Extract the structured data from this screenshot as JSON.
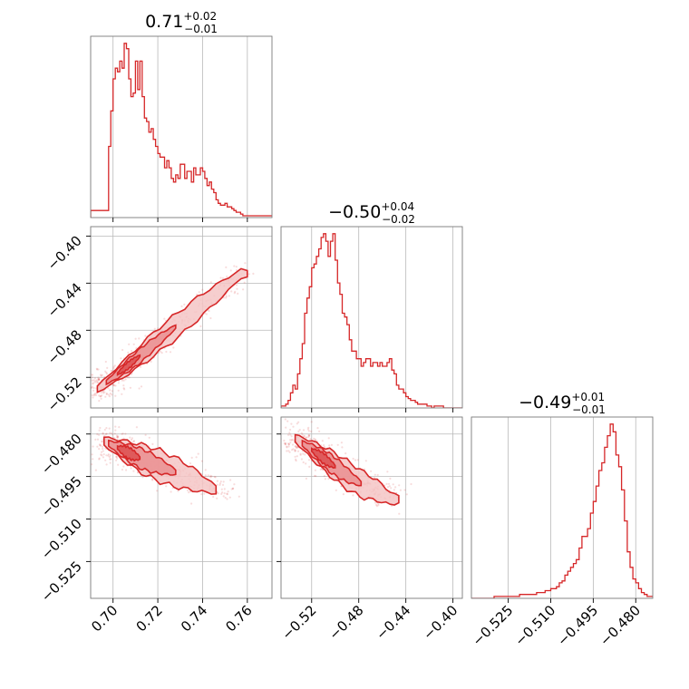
{
  "colors": {
    "series": "#d62728",
    "fill_light": "#f4c6c6",
    "fill_mid": "#ea8f90",
    "fill_dark": "#dd4f50",
    "grid": "#b9b9b9",
    "frame": "#7a7a7a"
  },
  "chart_data": {
    "type": "corner",
    "grid": true,
    "parameters": [
      {
        "title_value": "0.71",
        "title_plus": "+0.02",
        "title_minus": "−0.01",
        "range": [
          0.69,
          0.771
        ],
        "ticks": [
          0.7,
          0.72,
          0.74,
          0.76
        ],
        "tick_labels": [
          "0.70",
          "0.72",
          "0.74",
          "0.76"
        ],
        "hist_x": [
          0.69,
          0.696,
          0.698,
          0.699,
          0.7,
          0.701,
          0.702,
          0.703,
          0.704,
          0.705,
          0.706,
          0.707,
          0.708,
          0.709,
          0.71,
          0.711,
          0.712,
          0.713,
          0.714,
          0.715,
          0.716,
          0.717,
          0.718,
          0.719,
          0.72,
          0.721,
          0.722,
          0.723,
          0.724,
          0.725,
          0.726,
          0.727,
          0.728,
          0.729,
          0.73,
          0.731,
          0.732,
          0.733,
          0.734,
          0.735,
          0.736,
          0.737,
          0.738,
          0.739,
          0.74,
          0.741,
          0.742,
          0.743,
          0.744,
          0.745,
          0.746,
          0.747,
          0.748,
          0.749,
          0.75,
          0.751,
          0.752,
          0.753,
          0.754,
          0.755,
          0.756,
          0.757,
          0.758,
          0.76,
          0.771
        ],
        "hist_y": [
          4,
          4,
          40,
          60,
          78,
          84,
          82,
          88,
          84,
          98,
          95,
          78,
          68,
          70,
          88,
          72,
          88,
          68,
          56,
          54,
          48,
          50,
          44,
          40,
          36,
          34,
          34,
          28,
          32,
          28,
          22,
          20,
          24,
          22,
          30,
          30,
          22,
          26,
          26,
          20,
          28,
          24,
          24,
          28,
          26,
          22,
          18,
          20,
          16,
          14,
          10,
          8,
          7,
          7,
          8,
          6,
          6,
          5,
          4,
          3,
          3,
          2,
          1,
          1
        ]
      },
      {
        "title_value": "−0.50",
        "title_plus": "+0.04",
        "title_minus": "−0.02",
        "range": [
          -0.546,
          -0.392
        ],
        "ticks": [
          -0.52,
          -0.48,
          -0.44,
          -0.4
        ],
        "tick_labels": [
          "−0.52",
          "−0.48",
          "−0.44",
          "−0.40"
        ],
        "hist_x": [
          -0.546,
          -0.542,
          -0.54,
          -0.538,
          -0.536,
          -0.534,
          -0.532,
          -0.53,
          -0.528,
          -0.526,
          -0.524,
          -0.522,
          -0.52,
          -0.518,
          -0.516,
          -0.514,
          -0.512,
          -0.51,
          -0.508,
          -0.506,
          -0.504,
          -0.502,
          -0.5,
          -0.498,
          -0.496,
          -0.494,
          -0.492,
          -0.49,
          -0.488,
          -0.486,
          -0.484,
          -0.482,
          -0.48,
          -0.478,
          -0.476,
          -0.474,
          -0.472,
          -0.47,
          -0.468,
          -0.466,
          -0.464,
          -0.462,
          -0.46,
          -0.458,
          -0.456,
          -0.454,
          -0.452,
          -0.45,
          -0.448,
          -0.446,
          -0.444,
          -0.442,
          -0.44,
          -0.438,
          -0.436,
          -0.434,
          -0.432,
          -0.43,
          -0.428,
          -0.426,
          -0.424,
          -0.422,
          -0.42,
          -0.418,
          -0.416,
          -0.412,
          -0.408,
          -0.4,
          -0.392
        ],
        "hist_y": [
          1,
          2,
          4,
          8,
          12,
          10,
          18,
          26,
          34,
          50,
          58,
          64,
          74,
          76,
          80,
          84,
          90,
          92,
          88,
          80,
          88,
          92,
          78,
          66,
          60,
          50,
          48,
          44,
          36,
          30,
          30,
          26,
          26,
          22,
          24,
          26,
          26,
          22,
          24,
          24,
          22,
          24,
          22,
          22,
          24,
          26,
          20,
          18,
          12,
          10,
          10,
          8,
          6,
          5,
          4,
          4,
          3,
          2,
          2,
          2,
          2,
          1,
          1,
          0,
          1,
          1,
          0,
          0
        ]
      },
      {
        "title_value": "−0.49",
        "title_plus": "+0.01",
        "title_minus": "−0.01",
        "range": [
          -0.538,
          -0.474
        ],
        "ticks": [
          -0.525,
          -0.51,
          -0.495,
          -0.48
        ],
        "tick_labels": [
          "−0.525",
          "−0.510",
          "−0.495",
          "−0.480"
        ],
        "hist_x": [
          -0.538,
          -0.534,
          -0.53,
          -0.527,
          -0.524,
          -0.521,
          -0.518,
          -0.515,
          -0.512,
          -0.511,
          -0.51,
          -0.509,
          -0.508,
          -0.507,
          -0.506,
          -0.505,
          -0.504,
          -0.503,
          -0.502,
          -0.501,
          -0.5,
          -0.499,
          -0.498,
          -0.497,
          -0.496,
          -0.495,
          -0.494,
          -0.493,
          -0.492,
          -0.491,
          -0.49,
          -0.489,
          -0.488,
          -0.487,
          -0.486,
          -0.485,
          -0.484,
          -0.483,
          -0.482,
          -0.481,
          -0.48,
          -0.479,
          -0.478,
          -0.477,
          -0.476,
          -0.474
        ],
        "hist_y": [
          0,
          0,
          1,
          1,
          1,
          2,
          2,
          3,
          4,
          4,
          5,
          5,
          6,
          8,
          9,
          12,
          14,
          16,
          18,
          20,
          26,
          32,
          32,
          36,
          44,
          50,
          58,
          66,
          70,
          78,
          84,
          90,
          86,
          74,
          68,
          56,
          40,
          24,
          16,
          10,
          8,
          5,
          3,
          2,
          1
        ]
      }
    ],
    "scatter": [
      {
        "row": 1,
        "col": 0,
        "ridge": [
          [
            0.693,
            -0.53
          ],
          [
            0.7,
            -0.52
          ],
          [
            0.71,
            -0.505
          ],
          [
            0.72,
            -0.489
          ],
          [
            0.73,
            -0.474
          ],
          [
            0.74,
            -0.458
          ],
          [
            0.75,
            -0.443
          ],
          [
            0.757,
            -0.432
          ]
        ],
        "spread_x": 0.0028,
        "spread_y": 0.0042,
        "levels": [
          {
            "cut": [
              0.693,
              0.76
            ],
            "width": 0.0105
          },
          {
            "cut": [
              0.697,
              0.728
            ],
            "width": 0.006
          },
          {
            "cut": [
              0.702,
              0.712
            ],
            "width": 0.003
          }
        ]
      },
      {
        "row": 2,
        "col": 0,
        "ridge": [
          [
            0.696,
            -0.4825
          ],
          [
            0.705,
            -0.486
          ],
          [
            0.712,
            -0.4885
          ],
          [
            0.72,
            -0.491
          ],
          [
            0.728,
            -0.4935
          ],
          [
            0.736,
            -0.496
          ],
          [
            0.744,
            -0.499
          ],
          [
            0.752,
            -0.502
          ]
        ],
        "spread_x": 0.003,
        "spread_y": 0.0023,
        "levels": [
          {
            "cut": [
              0.696,
              0.746
            ],
            "width": 0.0055
          },
          {
            "cut": [
              0.698,
              0.728
            ],
            "width": 0.0035
          },
          {
            "cut": [
              0.702,
              0.712
            ],
            "width": 0.002
          }
        ]
      },
      {
        "row": 2,
        "col": 1,
        "ridge": [
          [
            -0.534,
            -0.4815
          ],
          [
            -0.522,
            -0.485
          ],
          [
            -0.512,
            -0.488
          ],
          [
            -0.5,
            -0.4915
          ],
          [
            -0.488,
            -0.495
          ],
          [
            -0.476,
            -0.498
          ],
          [
            -0.464,
            -0.5
          ],
          [
            -0.452,
            -0.503
          ]
        ],
        "spread_x": 0.006,
        "spread_y": 0.0022,
        "levels": [
          {
            "cut": [
              -0.534,
              -0.446
            ],
            "width": 0.005
          },
          {
            "cut": [
              -0.528,
              -0.478
            ],
            "width": 0.0032
          },
          {
            "cut": [
              -0.52,
              -0.5
            ],
            "width": 0.0018
          }
        ]
      }
    ]
  }
}
